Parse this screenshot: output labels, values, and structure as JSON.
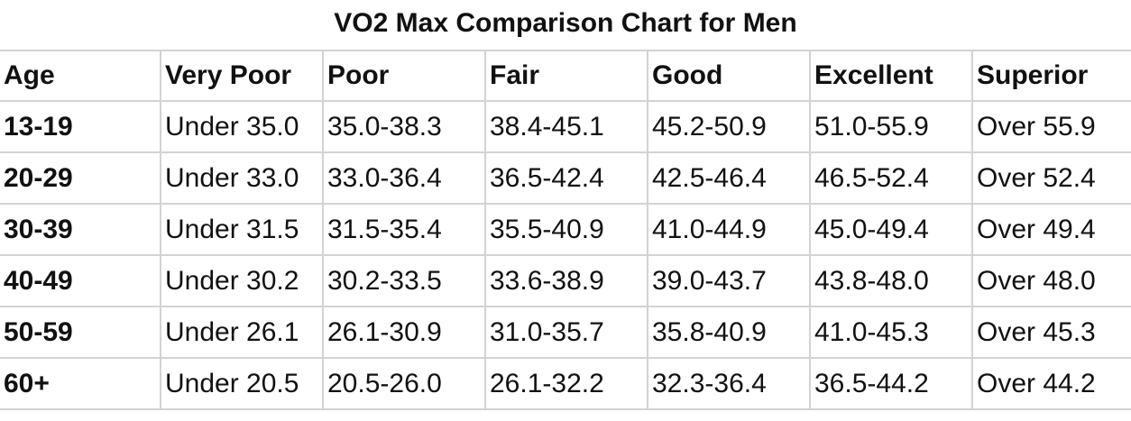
{
  "title": "VO2 Max Comparison Chart for Men",
  "table": {
    "header": [
      "Age",
      "Very Poor",
      "Poor",
      "Fair",
      "Good",
      "Excellent",
      "Superior"
    ],
    "rows": [
      [
        "13-19",
        "Under 35.0",
        "35.0-38.3",
        "38.4-45.1",
        "45.2-50.9",
        "51.0-55.9",
        "Over 55.9"
      ],
      [
        "20-29",
        "Under 33.0",
        "33.0-36.4",
        "36.5-42.4",
        "42.5-46.4",
        "46.5-52.4",
        "Over 52.4"
      ],
      [
        "30-39",
        "Under 31.5",
        "31.5-35.4",
        "35.5-40.9",
        "41.0-44.9",
        "45.0-49.4",
        "Over 49.4"
      ],
      [
        "40-49",
        "Under 30.2",
        "30.2-33.5",
        "33.6-38.9",
        "39.0-43.7",
        "43.8-48.0",
        "Over 48.0"
      ],
      [
        "50-59",
        "Under 26.1",
        "26.1-30.9",
        "31.0-35.7",
        "35.8-40.9",
        "41.0-45.3",
        "Over 45.3"
      ],
      [
        "60+",
        "Under 20.5",
        "20.5-26.0",
        "26.1-32.2",
        "32.3-36.4",
        "36.5-44.2",
        "Over 44.2"
      ]
    ]
  }
}
